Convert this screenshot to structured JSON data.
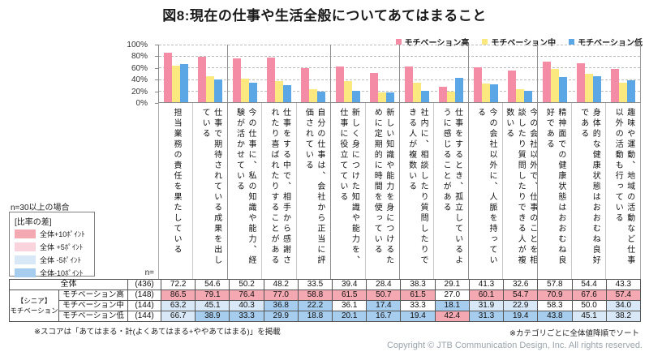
{
  "title": "図8:現在の仕事や生活全般についてあてはまること",
  "note_n30": "n=30以上の場合",
  "diff_legend": {
    "title": "[比率の差]",
    "items": [
      {
        "label": "全体+10ﾎﾟｲﾝﾄ",
        "color": "#F4A9B2",
        "class": "p10"
      },
      {
        "label": "全体 +5ﾎﾟｲﾝﾄ",
        "color": "#FAD4DC",
        "class": "p5"
      },
      {
        "label": "全体 -5ﾎﾟｲﾝﾄ",
        "color": "#D9E8F6",
        "class": "m5"
      },
      {
        "label": "全体-10ﾎﾟｲﾝﾄ",
        "color": "#A6CCEE",
        "class": "m10"
      }
    ]
  },
  "colors": {
    "p10": "#F4A9B2",
    "p5": "#FAD4DC",
    "m5": "#D9E8F6",
    "m10": "#A6CCEE"
  },
  "n_header": "n=",
  "chart_data": {
    "type": "bar",
    "title": "図8:現在の仕事や生活全般についてあてはまること",
    "ylim": [
      0,
      100
    ],
    "yticks": [
      100,
      80,
      60,
      40,
      20,
      0
    ],
    "grid": "dashed-horizontal",
    "legend_position": "top-right",
    "group_separators_after": [
      2,
      5,
      7,
      9,
      11
    ],
    "categories": [
      "担当業務の責任を果たしている",
      "仕事で期待されている成果を出している",
      "今の仕事に、私の知識や能力、経験が活かせている",
      "仕事をする中で、相手から感謝されたり喜ばれたりすることがある",
      "自分の仕事は、会社から正当に評価されている",
      "新しく身につけた知識や能力を、仕事に役立てている",
      "新しい知識や能力を身につけるために定期的に時間を使っている",
      "社内に、相談したり質問したりできる人が複数いる",
      "仕事をするとき、孤立しているように感じることがある",
      "今の会社以外に、人脈を持っている",
      "今の会社以外で、仕事のことを相談したり質問したりできる人が複数いる",
      "精神面での健康状態はおおむね良好である",
      "身体的な健康状態はおおむね良好である",
      "趣味や運動、地域の活動など仕事以外の活動も行っている"
    ],
    "series": [
      {
        "name": "モチベーション高",
        "color": "#F48CA6",
        "values": [
          86.5,
          79.1,
          76.4,
          77.0,
          58.8,
          61.5,
          50.7,
          61.5,
          27.0,
          60.1,
          54.7,
          70.9,
          67.6,
          57.4
        ]
      },
      {
        "name": "モチベーション中",
        "color": "#FBE87E",
        "values": [
          63.2,
          45.1,
          40.3,
          36.8,
          22.2,
          36.1,
          17.4,
          33.3,
          18.1,
          31.9,
          22.9,
          58.3,
          50.0,
          34.0
        ]
      },
      {
        "name": "モチベーション低",
        "color": "#5BA7E6",
        "values": [
          66.7,
          38.9,
          33.3,
          29.9,
          18.8,
          20.1,
          16.7,
          19.4,
          42.4,
          31.3,
          19.4,
          43.8,
          45.1,
          38.2
        ]
      }
    ],
    "overall": {
      "name": "全体",
      "values": [
        72.2,
        54.6,
        50.2,
        48.2,
        33.5,
        39.4,
        28.4,
        38.3,
        29.1,
        41.3,
        32.6,
        57.8,
        54.4,
        43.3
      ]
    }
  },
  "table": {
    "group_label_line1": "【シニア】",
    "group_label_line2": "モチベーション",
    "rows": [
      {
        "label": "全体",
        "n": "(436)",
        "span_all": true,
        "values": [
          72.2,
          54.6,
          50.2,
          48.2,
          33.5,
          39.4,
          28.4,
          38.3,
          29.1,
          41.3,
          32.6,
          57.8,
          54.4,
          43.3
        ],
        "classes": [
          "",
          "",
          "",
          "",
          "",
          "",
          "",
          "",
          "",
          "",
          "",
          "",
          "",
          ""
        ]
      },
      {
        "label": "モチベーション高",
        "n": "(148)",
        "values": [
          86.5,
          79.1,
          76.4,
          77.0,
          58.8,
          61.5,
          50.7,
          61.5,
          27.0,
          60.1,
          54.7,
          70.9,
          67.6,
          57.4
        ],
        "classes": [
          "p10",
          "p10",
          "p10",
          "p10",
          "p10",
          "p10",
          "p10",
          "p10",
          "",
          "p10",
          "p10",
          "p10",
          "p10",
          "p10"
        ]
      },
      {
        "label": "モチベーション中",
        "n": "(144)",
        "values": [
          63.2,
          45.1,
          40.3,
          36.8,
          22.2,
          36.1,
          17.4,
          33.3,
          18.1,
          31.9,
          22.9,
          58.3,
          50.0,
          34.0
        ],
        "classes": [
          "m5",
          "m5",
          "m5",
          "m10",
          "m10",
          "",
          "m10",
          "",
          "m10",
          "m5",
          "m5",
          "",
          "",
          "m5"
        ]
      },
      {
        "label": "モチベーション低",
        "n": "(144)",
        "values": [
          66.7,
          38.9,
          33.3,
          29.9,
          18.8,
          20.1,
          16.7,
          19.4,
          42.4,
          31.3,
          19.4,
          43.8,
          45.1,
          38.2
        ],
        "classes": [
          "m5",
          "m10",
          "m10",
          "m10",
          "m10",
          "m10",
          "m10",
          "m10",
          "p10",
          "m10",
          "m10",
          "m10",
          "m5",
          "m5"
        ]
      }
    ]
  },
  "footnotes": {
    "left": "※スコアは「あてはまる・計(よくあてはまる+ややあてはまる)」を掲載",
    "right": "※カテゴリごとに全体値降順でソート"
  },
  "copyright": "Copyright © JTB Communication Design, Inc. All rights reserved."
}
